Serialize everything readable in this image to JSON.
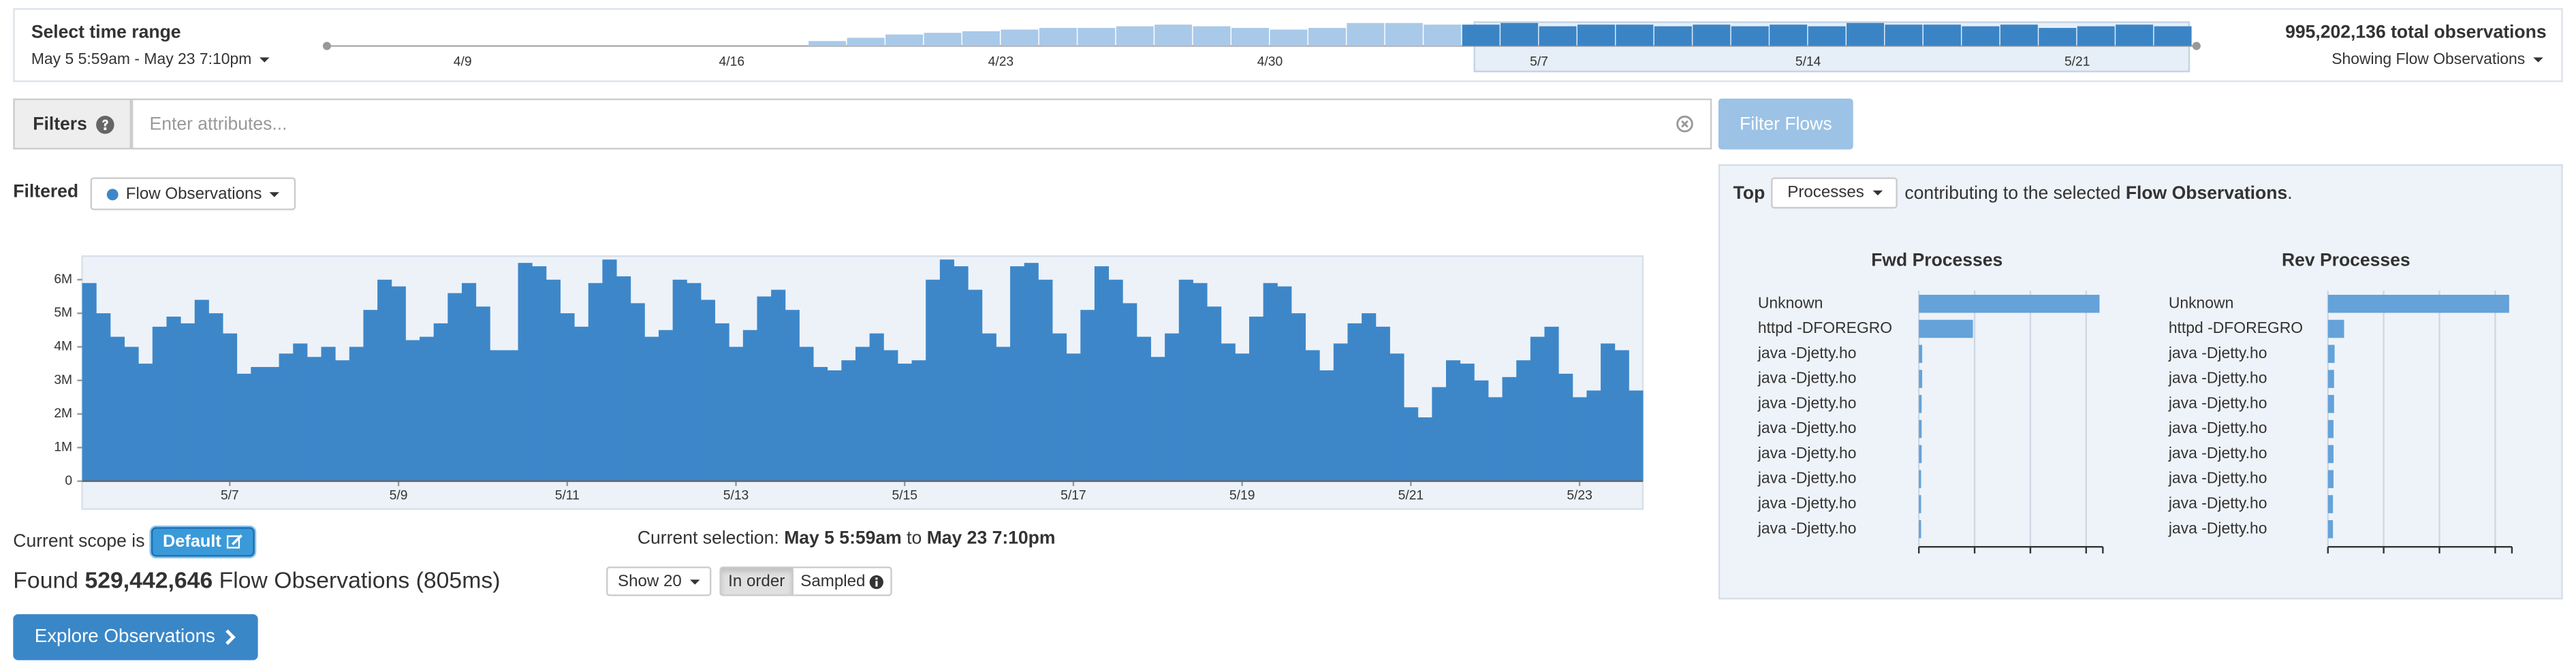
{
  "header": {
    "title": "Select time range",
    "range": "May 5 5:59am - May 23 7:10pm",
    "total": "995,202,136 total observations",
    "showing": "Showing Flow Observations"
  },
  "filters": {
    "label": "Filters",
    "placeholder": "Enter attributes...",
    "button": "Filter Flows"
  },
  "filtered": {
    "label": "Filtered",
    "selector": "Flow Observations"
  },
  "scope": {
    "label": "Current scope is",
    "button": "Default"
  },
  "selection": {
    "label": "Current selection:",
    "from": "May 5 5:59am",
    "joiner": "to",
    "to": "May 23 7:10pm"
  },
  "found": {
    "prefix": "Found",
    "count": "529,442,646",
    "suffix": "Flow Observations (805ms)"
  },
  "controls": {
    "show": "Show 20",
    "order": "In order",
    "sampled": "Sampled"
  },
  "explore": "Explore Observations",
  "top": {
    "prefix": "Top",
    "selector": "Processes",
    "middle": "contributing to the selected",
    "subject": "Flow Observations",
    "end": "."
  },
  "chart_data": [
    {
      "type": "bar",
      "categories": [
        null,
        null,
        null,
        null,
        "4/9",
        null,
        null,
        null,
        null,
        null,
        null,
        "4/16",
        null,
        null,
        null,
        null,
        null,
        null,
        "4/23",
        null,
        null,
        null,
        null,
        null,
        null,
        "4/30",
        null,
        null,
        null,
        null,
        null,
        null,
        "5/7",
        null,
        null,
        null,
        null,
        null,
        null,
        "5/14",
        null,
        null,
        null,
        null,
        null,
        null,
        "5/21",
        null,
        null
      ],
      "values": [
        0,
        0,
        0,
        0,
        0,
        0,
        0,
        0,
        0,
        0,
        0,
        0,
        0,
        6000000,
        10000000,
        14000000,
        16000000,
        18000000,
        20000000,
        22000000,
        22000000,
        24000000,
        26000000,
        24000000,
        22000000,
        20000000,
        22000000,
        28000000,
        28000000,
        26000000,
        26000000,
        28000000,
        24000000,
        26000000,
        26000000,
        24000000,
        26000000,
        24000000,
        26000000,
        24000000,
        28000000,
        26000000,
        26000000,
        24000000,
        26000000,
        22000000,
        24000000,
        26000000,
        24000000
      ],
      "colors": [
        "#a9c9e8",
        "#a9c9e8",
        "#a9c9e8",
        "#a9c9e8",
        "#a9c9e8",
        "#a9c9e8",
        "#a9c9e8",
        "#a9c9e8",
        "#a9c9e8",
        "#a9c9e8",
        "#a9c9e8",
        "#a9c9e8",
        "#a9c9e8",
        "#a9c9e8",
        "#a9c9e8",
        "#a9c9e8",
        "#a9c9e8",
        "#a9c9e8",
        "#a9c9e8",
        "#a9c9e8",
        "#a9c9e8",
        "#a9c9e8",
        "#a9c9e8",
        "#a9c9e8",
        "#a9c9e8",
        "#a9c9e8",
        "#a9c9e8",
        "#a9c9e8",
        "#a9c9e8",
        "#a9c9e8",
        "#3a84c6",
        "#3a84c6",
        "#3a84c6",
        "#3a84c6",
        "#3a84c6",
        "#3a84c6",
        "#3a84c6",
        "#3a84c6",
        "#3a84c6",
        "#3a84c6",
        "#3a84c6",
        "#3a84c6",
        "#3a84c6",
        "#3a84c6",
        "#3a84c6",
        "#3a84c6",
        "#3a84c6",
        "#3a84c6",
        "#3a84c6"
      ]
    },
    {
      "type": "bar",
      "color": "#3d87c9",
      "categories": [
        null,
        null,
        null,
        null,
        null,
        null,
        null,
        null,
        null,
        null,
        "5/7",
        null,
        null,
        null,
        null,
        null,
        null,
        null,
        null,
        null,
        null,
        null,
        "5/9",
        null,
        null,
        null,
        null,
        null,
        null,
        null,
        null,
        null,
        null,
        null,
        "5/11",
        null,
        null,
        null,
        null,
        null,
        null,
        null,
        null,
        null,
        null,
        null,
        "5/13",
        null,
        null,
        null,
        null,
        null,
        null,
        null,
        null,
        null,
        null,
        null,
        "5/15",
        null,
        null,
        null,
        null,
        null,
        null,
        null,
        null,
        null,
        null,
        null,
        "5/17",
        null,
        null,
        null,
        null,
        null,
        null,
        null,
        null,
        null,
        null,
        null,
        "5/19",
        null,
        null,
        null,
        null,
        null,
        null,
        null,
        null,
        null,
        null,
        null,
        "5/21",
        null,
        null,
        null,
        null,
        null,
        null,
        null,
        null,
        null,
        null,
        null,
        "5/23",
        null,
        null,
        null,
        null
      ],
      "values": [
        5900000,
        5000000,
        4300000,
        4000000,
        3500000,
        4600000,
        4900000,
        4700000,
        5400000,
        5000000,
        4400000,
        3200000,
        3400000,
        3400000,
        3800000,
        4100000,
        3700000,
        4000000,
        3600000,
        4000000,
        5100000,
        6000000,
        5800000,
        4200000,
        4300000,
        4700000,
        5600000,
        5900000,
        5200000,
        3900000,
        3900000,
        6500000,
        6400000,
        6000000,
        5000000,
        4600000,
        5900000,
        6600000,
        6100000,
        5300000,
        4300000,
        4500000,
        6000000,
        5900000,
        5400000,
        4700000,
        4000000,
        4500000,
        5500000,
        5700000,
        5100000,
        4000000,
        3400000,
        3300000,
        3600000,
        4000000,
        4400000,
        3900000,
        3500000,
        3600000,
        6000000,
        6600000,
        6400000,
        5700000,
        4400000,
        4000000,
        6400000,
        6500000,
        6000000,
        4400000,
        3800000,
        5100000,
        6400000,
        6000000,
        5300000,
        4300000,
        3700000,
        4400000,
        6000000,
        5900000,
        5200000,
        4100000,
        3800000,
        4900000,
        5900000,
        5800000,
        5000000,
        3900000,
        3300000,
        4100000,
        4700000,
        5000000,
        4600000,
        3800000,
        2200000,
        1900000,
        2800000,
        3600000,
        3500000,
        3000000,
        2500000,
        3100000,
        3600000,
        4300000,
        4600000,
        3200000,
        2500000,
        2700000,
        4100000,
        3900000,
        2700000
      ],
      "ylim": [
        0,
        6700000
      ],
      "yticks": [
        0,
        {
          "value": 1000000,
          "label": "1M"
        },
        {
          "value": 2000000,
          "label": "2M"
        },
        {
          "value": 3000000,
          "label": "3M"
        },
        {
          "value": 4000000,
          "label": "4M"
        },
        {
          "value": 5000000,
          "label": "5M"
        },
        {
          "value": 6000000,
          "label": "6M"
        }
      ]
    },
    {
      "type": "bar",
      "orientation": "horizontal",
      "title": "Fwd Processes",
      "color": "#64a2d9",
      "categories": [
        "Unknown",
        "httpd -DFOREGRO",
        "java -Djetty.ho",
        "java -Djetty.ho",
        "java -Djetty.ho",
        "java -Djetty.ho",
        "java -Djetty.ho",
        "java -Djetty.ho",
        "java -Djetty.ho",
        "java -Djetty.ho"
      ],
      "values": [
        324000000,
        97000000,
        6000000,
        6000000,
        5000000,
        5000000,
        5000000,
        4000000,
        4000000,
        4000000
      ],
      "xlim": [
        0,
        330000000
      ],
      "xticks": [
        0,
        100000000,
        200000000,
        300000000
      ]
    },
    {
      "type": "bar",
      "orientation": "horizontal",
      "title": "Rev Processes",
      "color": "#64a2d9",
      "categories": [
        "Unknown",
        "httpd -DFOREGRO",
        "java -Djetty.ho",
        "java -Djetty.ho",
        "java -Djetty.ho",
        "java -Djetty.ho",
        "java -Djetty.ho",
        "java -Djetty.ho",
        "java -Djetty.ho",
        "java -Djetty.ho"
      ],
      "values": [
        325000000,
        29000000,
        12000000,
        11000000,
        11000000,
        10000000,
        10000000,
        10000000,
        9000000,
        9000000
      ],
      "xlim": [
        0,
        330000000
      ],
      "xticks": [
        0,
        100000000,
        200000000,
        300000000
      ]
    }
  ]
}
